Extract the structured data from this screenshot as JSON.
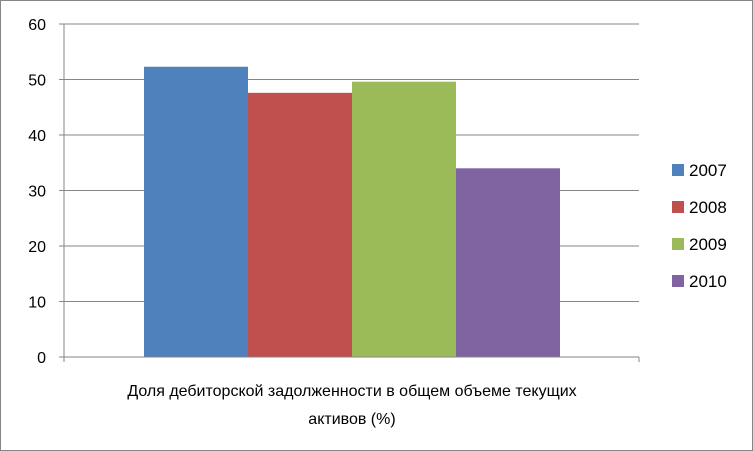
{
  "chart_data": {
    "type": "bar",
    "categories": [
      "Доля дебиторской задолженности в общем объеме текущих активов (%)"
    ],
    "category_label_lines": [
      "Доля дебиторской задолженности в общем объеме текущих",
      "активов (%)"
    ],
    "series": [
      {
        "name": "2007",
        "values": [
          52.3
        ],
        "color": "#4f81bd"
      },
      {
        "name": "2008",
        "values": [
          47.6
        ],
        "color": "#c0504d"
      },
      {
        "name": "2009",
        "values": [
          49.6
        ],
        "color": "#9bbb59"
      },
      {
        "name": "2010",
        "values": [
          34.0
        ],
        "color": "#8064a2"
      }
    ],
    "yticks": [
      "0",
      "10",
      "20",
      "30",
      "40",
      "50",
      "60"
    ],
    "ylim": [
      0,
      60
    ],
    "grid": true,
    "legend": "right"
  }
}
